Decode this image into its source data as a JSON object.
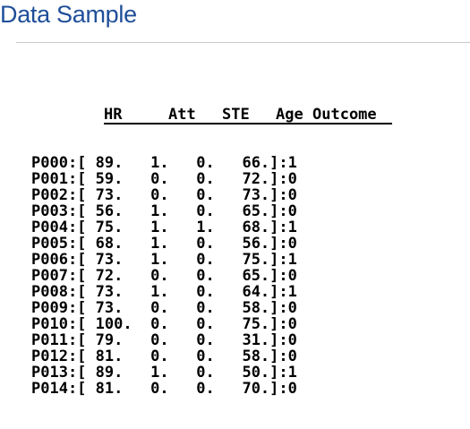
{
  "title": "Data Sample",
  "headers": [
    "HR",
    "Att",
    "STE",
    "Age",
    "Outcome"
  ],
  "rows": [
    {
      "id": "P000",
      "hr": "89.",
      "att": "1.",
      "ste": "0.",
      "age": "66.",
      "outcome": "1"
    },
    {
      "id": "P001",
      "hr": "59.",
      "att": "0.",
      "ste": "0.",
      "age": "72.",
      "outcome": "0"
    },
    {
      "id": "P002",
      "hr": "73.",
      "att": "0.",
      "ste": "0.",
      "age": "73.",
      "outcome": "0"
    },
    {
      "id": "P003",
      "hr": "56.",
      "att": "1.",
      "ste": "0.",
      "age": "65.",
      "outcome": "0"
    },
    {
      "id": "P004",
      "hr": "75.",
      "att": "1.",
      "ste": "1.",
      "age": "68.",
      "outcome": "1"
    },
    {
      "id": "P005",
      "hr": "68.",
      "att": "1.",
      "ste": "0.",
      "age": "56.",
      "outcome": "0"
    },
    {
      "id": "P006",
      "hr": "73.",
      "att": "1.",
      "ste": "0.",
      "age": "75.",
      "outcome": "1"
    },
    {
      "id": "P007",
      "hr": "72.",
      "att": "0.",
      "ste": "0.",
      "age": "65.",
      "outcome": "0"
    },
    {
      "id": "P008",
      "hr": "73.",
      "att": "1.",
      "ste": "0.",
      "age": "64.",
      "outcome": "1"
    },
    {
      "id": "P009",
      "hr": "73.",
      "att": "0.",
      "ste": "0.",
      "age": "58.",
      "outcome": "0"
    },
    {
      "id": "P010",
      "hr": "100.",
      "att": "0.",
      "ste": "0.",
      "age": "75.",
      "outcome": "0"
    },
    {
      "id": "P011",
      "hr": "79.",
      "att": "0.",
      "ste": "0.",
      "age": "31.",
      "outcome": "0"
    },
    {
      "id": "P012",
      "hr": "81.",
      "att": "0.",
      "ste": "0.",
      "age": "58.",
      "outcome": "0"
    },
    {
      "id": "P013",
      "hr": "89.",
      "att": "1.",
      "ste": "0.",
      "age": "50.",
      "outcome": "1"
    },
    {
      "id": "P014",
      "hr": "81.",
      "att": "0.",
      "ste": "0.",
      "age": "70.",
      "outcome": "0"
    }
  ]
}
